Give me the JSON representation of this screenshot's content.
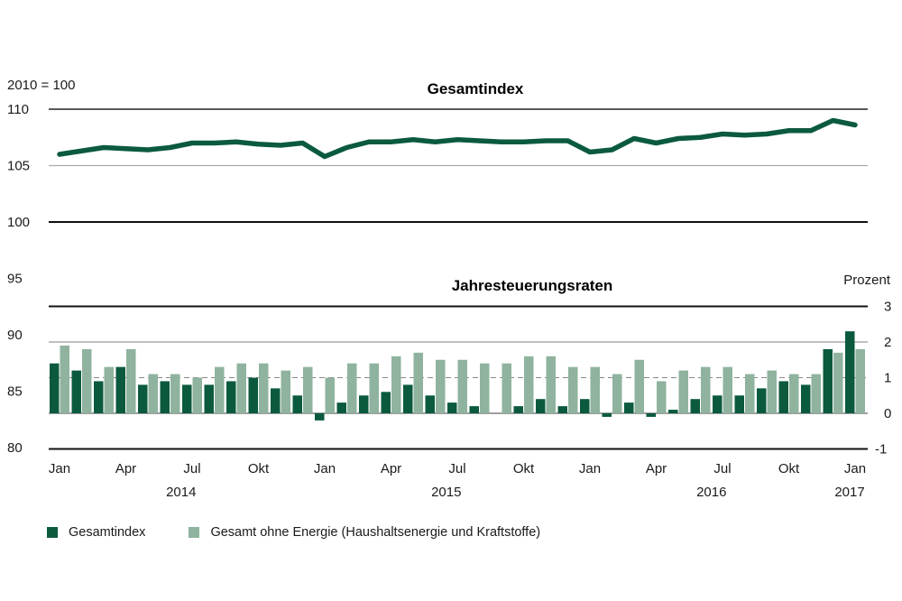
{
  "chart_data": [
    {
      "type": "line",
      "title": "Gesamtindex",
      "ylabel": "2010 = 100",
      "ylim": [
        80,
        110
      ],
      "yticks": [
        "110",
        "105",
        "100",
        "95",
        "90",
        "85",
        "80"
      ],
      "ytick_values": [
        110,
        105,
        100,
        95,
        90,
        85,
        80
      ],
      "x": [
        "Jan 2014",
        "Feb 2014",
        "Mär 2014",
        "Apr 2014",
        "Mai 2014",
        "Jun 2014",
        "Jul 2014",
        "Aug 2014",
        "Sep 2014",
        "Okt 2014",
        "Nov 2014",
        "Dez 2014",
        "Jan 2015",
        "Feb 2015",
        "Mär 2015",
        "Apr 2015",
        "Mai 2015",
        "Jun 2015",
        "Jul 2015",
        "Aug 2015",
        "Sep 2015",
        "Okt 2015",
        "Nov 2015",
        "Dez 2015",
        "Jan 2016",
        "Feb 2016",
        "Mär 2016",
        "Apr 2016",
        "Mai 2016",
        "Jun 2016",
        "Jul 2016",
        "Aug 2016",
        "Sep 2016",
        "Okt 2016",
        "Nov 2016",
        "Dez 2016",
        "Jan 2017"
      ],
      "series": [
        {
          "name": "Gesamtindex",
          "color": "#0b5a3e",
          "values": [
            106.0,
            106.3,
            106.6,
            106.5,
            106.4,
            106.6,
            107.0,
            107.0,
            107.1,
            106.9,
            106.8,
            107.0,
            105.8,
            106.6,
            107.1,
            107.1,
            107.3,
            107.1,
            107.3,
            107.2,
            107.1,
            107.1,
            107.2,
            107.2,
            106.2,
            106.4,
            107.4,
            107.0,
            107.4,
            107.5,
            107.8,
            107.7,
            107.8,
            108.1,
            108.1,
            109.0,
            108.6
          ]
        }
      ],
      "grid": true
    },
    {
      "type": "bar",
      "title": "Jahresteuerungsraten",
      "ylabel": "Prozent",
      "ylim": [
        -1,
        3
      ],
      "yticks": [
        "3",
        "2",
        "1",
        "0",
        "-1"
      ],
      "ytick_values": [
        3,
        2,
        1,
        0,
        -1
      ],
      "xtick_labels": [
        {
          "label": "Jan",
          "index": 0
        },
        {
          "label": "Apr",
          "index": 3
        },
        {
          "label": "Jul",
          "index": 6
        },
        {
          "label": "Okt",
          "index": 9
        },
        {
          "label": "Jan",
          "index": 12
        },
        {
          "label": "Apr",
          "index": 15
        },
        {
          "label": "Jul",
          "index": 18
        },
        {
          "label": "Okt",
          "index": 21
        },
        {
          "label": "Jan",
          "index": 24
        },
        {
          "label": "Apr",
          "index": 27
        },
        {
          "label": "Jul",
          "index": 30
        },
        {
          "label": "Okt",
          "index": 33
        },
        {
          "label": "Jan",
          "index": 36
        }
      ],
      "year_labels": [
        {
          "label": "2014",
          "index": 5.5
        },
        {
          "label": "2015",
          "index": 17.5
        },
        {
          "label": "2016",
          "index": 29.5
        },
        {
          "label": "2017",
          "index": 36
        }
      ],
      "series": [
        {
          "name": "Gesamtindex",
          "color": "#0b5a3e",
          "values": [
            1.4,
            1.2,
            0.9,
            1.3,
            0.8,
            0.9,
            0.8,
            0.8,
            0.9,
            1.0,
            0.7,
            0.5,
            -0.2,
            0.3,
            0.5,
            0.6,
            0.8,
            0.5,
            0.3,
            0.2,
            0.0,
            0.2,
            0.4,
            0.2,
            0.4,
            -0.1,
            0.3,
            -0.1,
            0.1,
            0.4,
            0.5,
            0.5,
            0.7,
            0.9,
            0.8,
            1.8,
            2.3
          ]
        },
        {
          "name": "Gesamt ohne Energie (Haushaltsenergie und Kraftstoffe)",
          "color": "#8fb39e",
          "values": [
            1.9,
            1.8,
            1.3,
            1.8,
            1.1,
            1.1,
            1.0,
            1.3,
            1.4,
            1.4,
            1.2,
            1.3,
            1.0,
            1.4,
            1.4,
            1.6,
            1.7,
            1.5,
            1.5,
            1.4,
            1.4,
            1.6,
            1.6,
            1.3,
            1.3,
            1.1,
            1.5,
            0.9,
            1.2,
            1.3,
            1.3,
            1.1,
            1.2,
            1.1,
            1.1,
            1.7,
            1.8
          ]
        }
      ],
      "legend": "bottom-left",
      "grid": true
    }
  ],
  "legend": {
    "items": [
      {
        "label": "Gesamtindex",
        "color": "#0b5a3e"
      },
      {
        "label": "Gesamt ohne Energie (Haushaltsenergie und Kraftstoffe)",
        "color": "#8fb39e"
      }
    ]
  }
}
